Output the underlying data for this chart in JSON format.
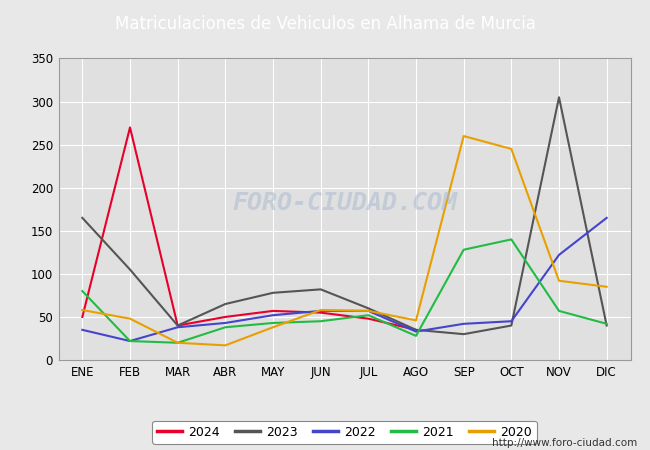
{
  "title": "Matriculaciones de Vehiculos en Alhama de Murcia",
  "title_bg": "#4a8fd4",
  "title_color": "white",
  "months": [
    "ENE",
    "FEB",
    "MAR",
    "ABR",
    "MAY",
    "JUN",
    "JUL",
    "AGO",
    "SEP",
    "OCT",
    "NOV",
    "DIC"
  ],
  "series": {
    "2024": {
      "color": "#e8002a",
      "data": [
        50,
        270,
        40,
        50,
        57,
        55,
        48,
        35,
        null,
        null,
        null,
        null
      ]
    },
    "2023": {
      "color": "#555555",
      "data": [
        165,
        105,
        40,
        65,
        78,
        82,
        60,
        35,
        30,
        40,
        305,
        40
      ]
    },
    "2022": {
      "color": "#4444cc",
      "data": [
        35,
        22,
        38,
        43,
        52,
        57,
        57,
        33,
        42,
        45,
        122,
        165
      ]
    },
    "2021": {
      "color": "#22bb44",
      "data": [
        80,
        22,
        20,
        38,
        43,
        45,
        52,
        28,
        128,
        140,
        57,
        42
      ]
    },
    "2020": {
      "color": "#e8a000",
      "data": [
        58,
        48,
        20,
        17,
        38,
        58,
        57,
        46,
        260,
        245,
        92,
        85
      ]
    }
  },
  "ylim": [
    0,
    350
  ],
  "yticks": [
    0,
    50,
    100,
    150,
    200,
    250,
    300,
    350
  ],
  "watermark": "FORO-CIUDAD.COM",
  "url": "http://www.foro-ciudad.com",
  "outer_bg": "#e8e8e8",
  "plot_bg_color": "#e0e0e0",
  "grid_color": "white"
}
